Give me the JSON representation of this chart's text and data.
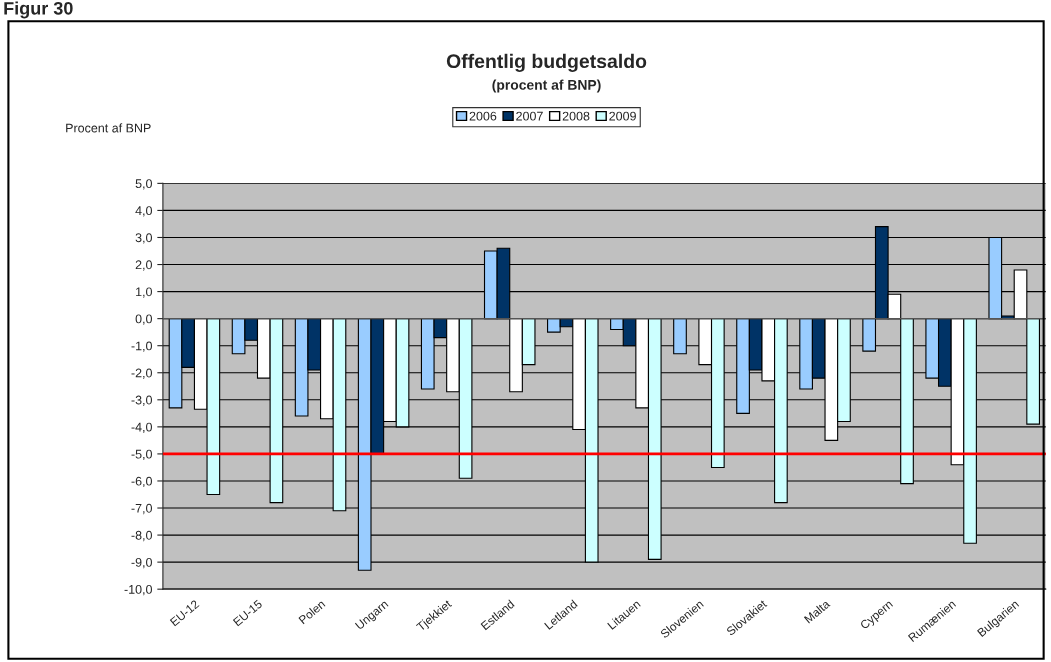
{
  "chart_data": {
    "type": "bar",
    "title": "Offentlig budgetsaldo",
    "subtitle": "(procent af BNP)",
    "ylabel": "Procent af BNP",
    "annotations": [
      "Figur 30"
    ],
    "categories": [
      "EU-12",
      "EU-15",
      "Polen",
      "Ungarn",
      "Tjekkiet",
      "Estland",
      "Letland",
      "Litauen",
      "Slovenien",
      "Slovakiet",
      "Malta",
      "Cypern",
      "Rumænien",
      "Bulgarien"
    ],
    "series": [
      {
        "name": "2006",
        "color": "#99ccff",
        "values": [
          -3.3,
          -1.3,
          -3.6,
          -9.3,
          -2.6,
          2.5,
          -0.5,
          -0.4,
          -1.3,
          -3.5,
          -2.6,
          -1.2,
          -2.2,
          3.0
        ]
      },
      {
        "name": "2007",
        "color": "#003366",
        "values": [
          -1.8,
          -0.8,
          -1.9,
          -5.0,
          -0.7,
          2.6,
          -0.3,
          -1.0,
          null,
          -1.9,
          -2.2,
          3.4,
          -2.5,
          0.1
        ]
      },
      {
        "name": "2008",
        "color": "#ffffff",
        "values": [
          -3.35,
          -2.2,
          -3.7,
          -3.8,
          -2.7,
          -2.7,
          -4.1,
          -3.3,
          -1.7,
          -2.3,
          -4.5,
          0.9,
          -5.4,
          1.8
        ]
      },
      {
        "name": "2009",
        "color": "#ccffff",
        "values": [
          -6.5,
          -6.8,
          -7.1,
          -4.0,
          -5.9,
          -1.7,
          -9.0,
          -8.9,
          -5.5,
          -6.8,
          -3.8,
          -6.1,
          -8.3,
          -3.9
        ]
      }
    ],
    "ylim": [
      -10,
      5
    ],
    "yticks": [
      {
        "value": 5,
        "label": "5,0"
      },
      {
        "value": 4,
        "label": "4,0"
      },
      {
        "value": 3,
        "label": "3,0"
      },
      {
        "value": 2,
        "label": "2,0"
      },
      {
        "value": 1,
        "label": "1,0"
      },
      {
        "value": 0,
        "label": "0,0"
      },
      {
        "value": -1,
        "label": "-1,0"
      },
      {
        "value": -2,
        "label": "-2,0"
      },
      {
        "value": -3,
        "label": "-3,0"
      },
      {
        "value": -4,
        "label": "-4,0"
      },
      {
        "value": -5,
        "label": "-5,0"
      },
      {
        "value": -6,
        "label": "-6,0"
      },
      {
        "value": -7,
        "label": "-7,0"
      },
      {
        "value": -8,
        "label": "-8,0"
      },
      {
        "value": -9,
        "label": "-9,0"
      },
      {
        "value": -10,
        "label": "-10,0"
      }
    ],
    "ref_lines": [
      {
        "axis": "y",
        "value": -5,
        "color": "#ff0000"
      }
    ],
    "grid": "y",
    "legend": "top"
  }
}
